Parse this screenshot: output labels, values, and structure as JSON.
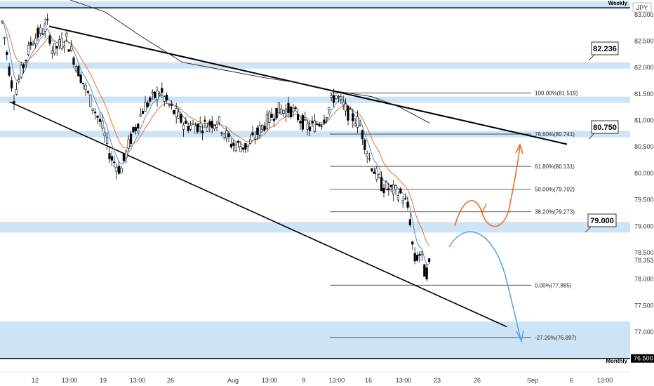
{
  "chart_data": {
    "type": "candlestick",
    "instrument_label": "JPY",
    "ylim": [
      76.35,
      83.25
    ],
    "y_ticks": [
      "83.000",
      "82.500",
      "82.000",
      "81.500",
      "81.000",
      "80.500",
      "80.000",
      "79.500",
      "79.000",
      "78.500",
      "78.000",
      "77.500",
      "77.000"
    ],
    "y_tick_values": [
      83.0,
      82.5,
      82.0,
      81.5,
      81.0,
      80.5,
      80.0,
      79.5,
      79.0,
      78.5,
      78.0,
      77.5,
      77.0
    ],
    "current_price": {
      "label": "78.353",
      "value": 78.353
    },
    "x_ticks": [
      "12",
      "13:00",
      "19",
      "13:00",
      "26",
      "Aug",
      "13:00",
      "9",
      "13:00",
      "16",
      "13:00",
      "23",
      "26",
      "Sep",
      "6",
      "13:00"
    ],
    "zones": [
      {
        "name": "Weekly",
        "label": "Weekly",
        "price": 83.18,
        "lo": 83.1,
        "hi": 83.25
      },
      {
        "name": "82.236",
        "lo": 81.98,
        "hi": 82.1
      },
      {
        "name": "81.45",
        "lo": 81.33,
        "hi": 81.45
      },
      {
        "name": "80.750",
        "lo": 80.68,
        "hi": 80.8
      },
      {
        "name": "79.000",
        "lo": 78.88,
        "hi": 79.08
      },
      {
        "name": "Monthly",
        "label": "Monthly",
        "price": 76.5,
        "lo": 76.5,
        "hi": 77.2
      }
    ],
    "callouts": [
      {
        "label": "82.236",
        "price": 82.236
      },
      {
        "label": "80.750",
        "price": 80.75
      },
      {
        "label": "79.000",
        "price": 79.0
      }
    ],
    "side_labels": {
      "weekly": "Weekly",
      "monthly": "Monthly",
      "monthly_price": "76.500"
    },
    "fib_levels": [
      {
        "label": "100.00%(81.519)",
        "price": 81.519
      },
      {
        "label": "78.60%(80.741)",
        "price": 80.741
      },
      {
        "label": "61.80%(80.131)",
        "price": 80.131
      },
      {
        "label": "50.00%(79.702)",
        "price": 79.702
      },
      {
        "label": "38.20%(79.273)",
        "price": 79.273
      },
      {
        "label": "0.00%(77.885)",
        "price": 77.885
      },
      {
        "label": "-27.20%(76.897)",
        "price": 76.897
      }
    ],
    "channel": {
      "upper": [
        {
          "x": 12,
          "price": 82.78
        },
        {
          "x": 1.0,
          "price": 80.55
        }
      ],
      "lower": [
        {
          "x": 12,
          "price": 81.35
        },
        {
          "x": 1.0,
          "price": 77.1
        }
      ]
    },
    "colors": {
      "zone": "#cde4f7",
      "up_candle": "#ffffff",
      "down_candle": "#000000",
      "ema_fast": "#4a90d9",
      "ema_slow": "#e8702a",
      "sma_long": "#222222",
      "projection_bull": "#e8702a",
      "projection_bear": "#5aa9e6"
    },
    "candles": []
  }
}
